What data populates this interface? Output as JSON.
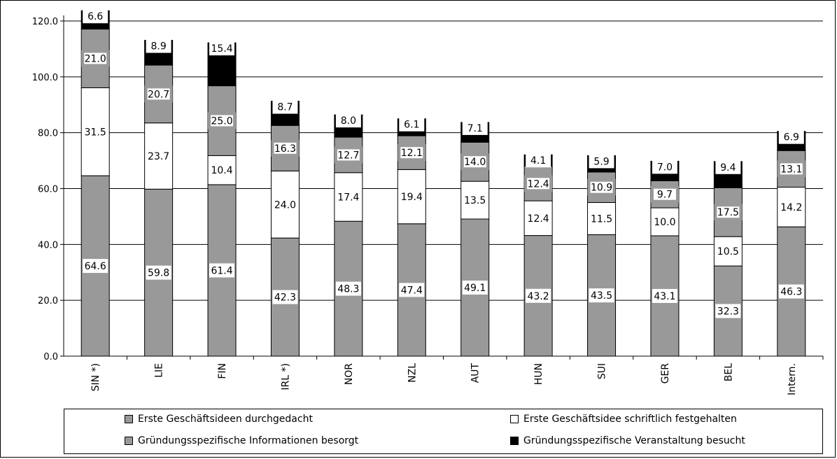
{
  "chart_data": {
    "type": "bar",
    "stacked": true,
    "categories": [
      "SIN *)",
      "LIE",
      "FIN",
      "IRL *)",
      "NOR",
      "NZL",
      "AUT",
      "HUN",
      "SUI",
      "GER",
      "BEL",
      "Intern."
    ],
    "series": [
      {
        "name": "Erste Geschäftsideen durchgedacht",
        "color": "#999999",
        "label_style": "white",
        "values": [
          64.6,
          59.8,
          61.4,
          42.3,
          48.3,
          47.4,
          49.1,
          43.2,
          43.5,
          43.1,
          32.3,
          46.3
        ],
        "labels": [
          "64.6",
          "59.8",
          "61.4",
          "42.3",
          "48.3",
          "47.4",
          "49.1",
          "43.2",
          "43.5",
          "43.1",
          "32.3",
          "46.3"
        ]
      },
      {
        "name": "Erste Geschäftsidee schriftlich festgehalten",
        "color": "#ffffff",
        "label_style": "plain",
        "values": [
          31.5,
          23.7,
          10.4,
          24.0,
          17.4,
          19.4,
          13.5,
          12.4,
          11.5,
          10.0,
          10.5,
          14.2
        ],
        "labels": [
          "31.5",
          "23.7",
          "10.4",
          "24.0",
          "17.4",
          "19.4",
          "13.5",
          "12.4",
          "11.5",
          "10.0",
          "10.5",
          "14.2"
        ]
      },
      {
        "name": "Gründungsspezifische Informationen besorgt",
        "color": "#999999",
        "label_style": "boxed",
        "values": [
          21.0,
          20.7,
          25.0,
          16.3,
          12.7,
          12.1,
          14.0,
          12.4,
          10.9,
          9.7,
          17.5,
          13.1
        ],
        "labels": [
          "21.0",
          "20.7",
          "25.0",
          "16.3",
          "12.7",
          "12.1",
          "14.0",
          "12.4",
          "10.9",
          "9.7",
          "17.5",
          "13.1"
        ]
      },
      {
        "name": "Gründungsspezifische Veranstaltung besucht",
        "color": "#000000",
        "label_style": "white",
        "values": [
          6.6,
          8.9,
          15.4,
          8.7,
          8.0,
          6.1,
          7.1,
          4.1,
          5.9,
          7.0,
          9.4,
          6.9
        ],
        "labels": [
          "6.6",
          "8.9",
          "15.4",
          "8.7",
          "8.0",
          "6.1",
          "7.1",
          "4.1",
          "5.9",
          "7.0",
          "9.4",
          "6.9"
        ]
      }
    ],
    "ylim": [
      0,
      120
    ],
    "yticks": [
      "0.0",
      "20.0",
      "40.0",
      "60.0",
      "80.0",
      "100.0",
      "120.0"
    ],
    "grid": true,
    "legend_position": "bottom"
  },
  "legend": {
    "items": [
      {
        "label": "Erste Geschäftsideen durchgedacht",
        "color": "#999999"
      },
      {
        "label": "Erste Geschäftsidee schriftlich festgehalten",
        "color": "#ffffff"
      },
      {
        "label": "Gründungsspezifische Informationen besorgt",
        "color": "#999999"
      },
      {
        "label": "Gründungsspezifische Veranstaltung besucht",
        "color": "#000000"
      }
    ]
  }
}
